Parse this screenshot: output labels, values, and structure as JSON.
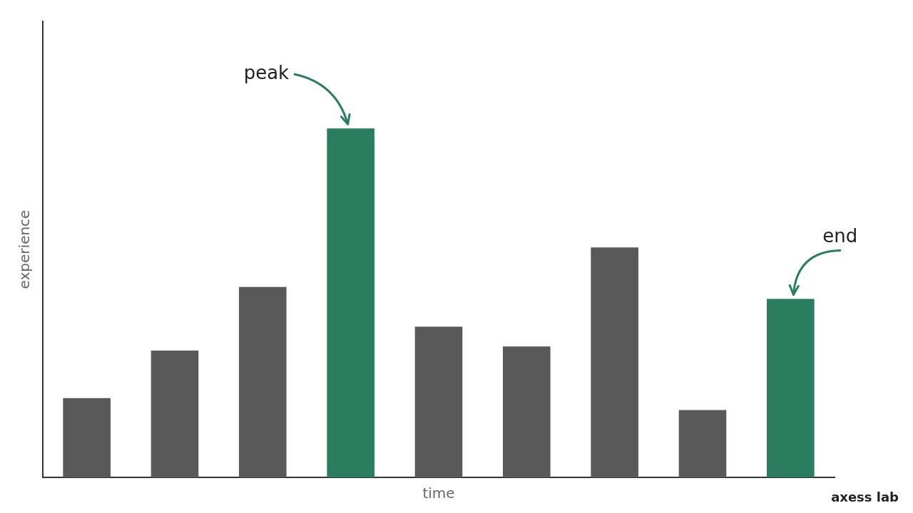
{
  "chart_data": {
    "type": "bar",
    "categories": [
      null,
      null,
      null,
      null,
      null,
      null,
      null,
      null,
      null
    ],
    "values": [
      2.0,
      3.2,
      4.8,
      8.8,
      3.8,
      3.3,
      5.8,
      1.7,
      4.5
    ],
    "colors": [
      "#595959",
      "#595959",
      "#595959",
      "#2a7d5f",
      "#595959",
      "#595959",
      "#595959",
      "#595959",
      "#2a7d5f"
    ],
    "x_label": "time",
    "y_label": "experience",
    "ylim": [
      0,
      11.5
    ],
    "yticks": [],
    "grid": false,
    "tick_labels": false,
    "annotations": [
      {
        "text": "peak",
        "x": 3
      },
      {
        "text": "end",
        "x": 8
      },
      {
        "text": "axess lab"
      }
    ]
  }
}
